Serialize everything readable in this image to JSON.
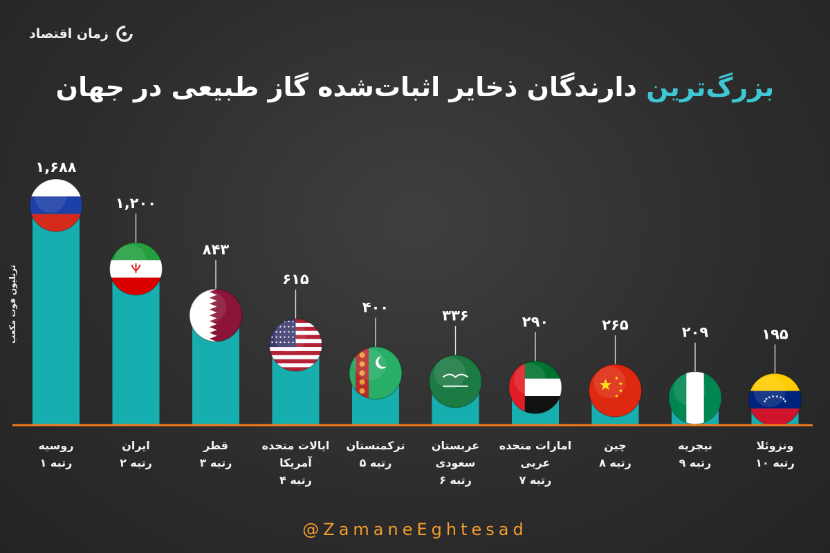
{
  "logo": {
    "text": "زمان اقتصاد",
    "icon": "zamane-eghtesad-logo-icon"
  },
  "title": {
    "accent": "بزرگ‌ترین",
    "rest": " دارندگان ذخایر اثبات‌شده گاز طبیعی در جهان"
  },
  "footer": "@ZamaneEghtesad",
  "colors": {
    "bar": "#17aeb0",
    "baseline": "#f07a1a",
    "accent": "#3fc6d4",
    "footer": "#f59c2f"
  },
  "chart_data": {
    "type": "bar",
    "ylabel": "تریلیون فوت مکعب",
    "ylim": [
      0,
      1688
    ],
    "categories": [
      {
        "name": "روسیه",
        "rank": "رتبه ۱",
        "flag": "russia"
      },
      {
        "name": "ایران",
        "rank": "رتبه ۲",
        "flag": "iran"
      },
      {
        "name": "قطر",
        "rank": "رتبه ۳",
        "flag": "qatar"
      },
      {
        "name": "ایالات متحده آمریکا",
        "rank": "رتبه ۴",
        "flag": "usa"
      },
      {
        "name": "ترکمنستان",
        "rank": "رتبه ۵",
        "flag": "turkmenistan"
      },
      {
        "name": "عربستان سعودی",
        "rank": "رتبه ۶",
        "flag": "saudi-arabia"
      },
      {
        "name": "امارات متحده عربی",
        "rank": "رتبه ۷",
        "flag": "uae"
      },
      {
        "name": "چین",
        "rank": "رتبه ۸",
        "flag": "china"
      },
      {
        "name": "نیجریه",
        "rank": "رتبه ۹",
        "flag": "nigeria"
      },
      {
        "name": "ونزوئلا",
        "rank": "رتبه ۱۰",
        "flag": "venezuela"
      }
    ],
    "values": [
      1688,
      1200,
      843,
      615,
      400,
      336,
      290,
      265,
      209,
      195
    ],
    "value_labels": [
      "۱,۶۸۸",
      "۱,۲۰۰",
      "۸۴۳",
      "۶۱۵",
      "۴۰۰",
      "۳۳۶",
      "۲۹۰",
      "۲۶۵",
      "۲۰۹",
      "۱۹۵"
    ]
  }
}
